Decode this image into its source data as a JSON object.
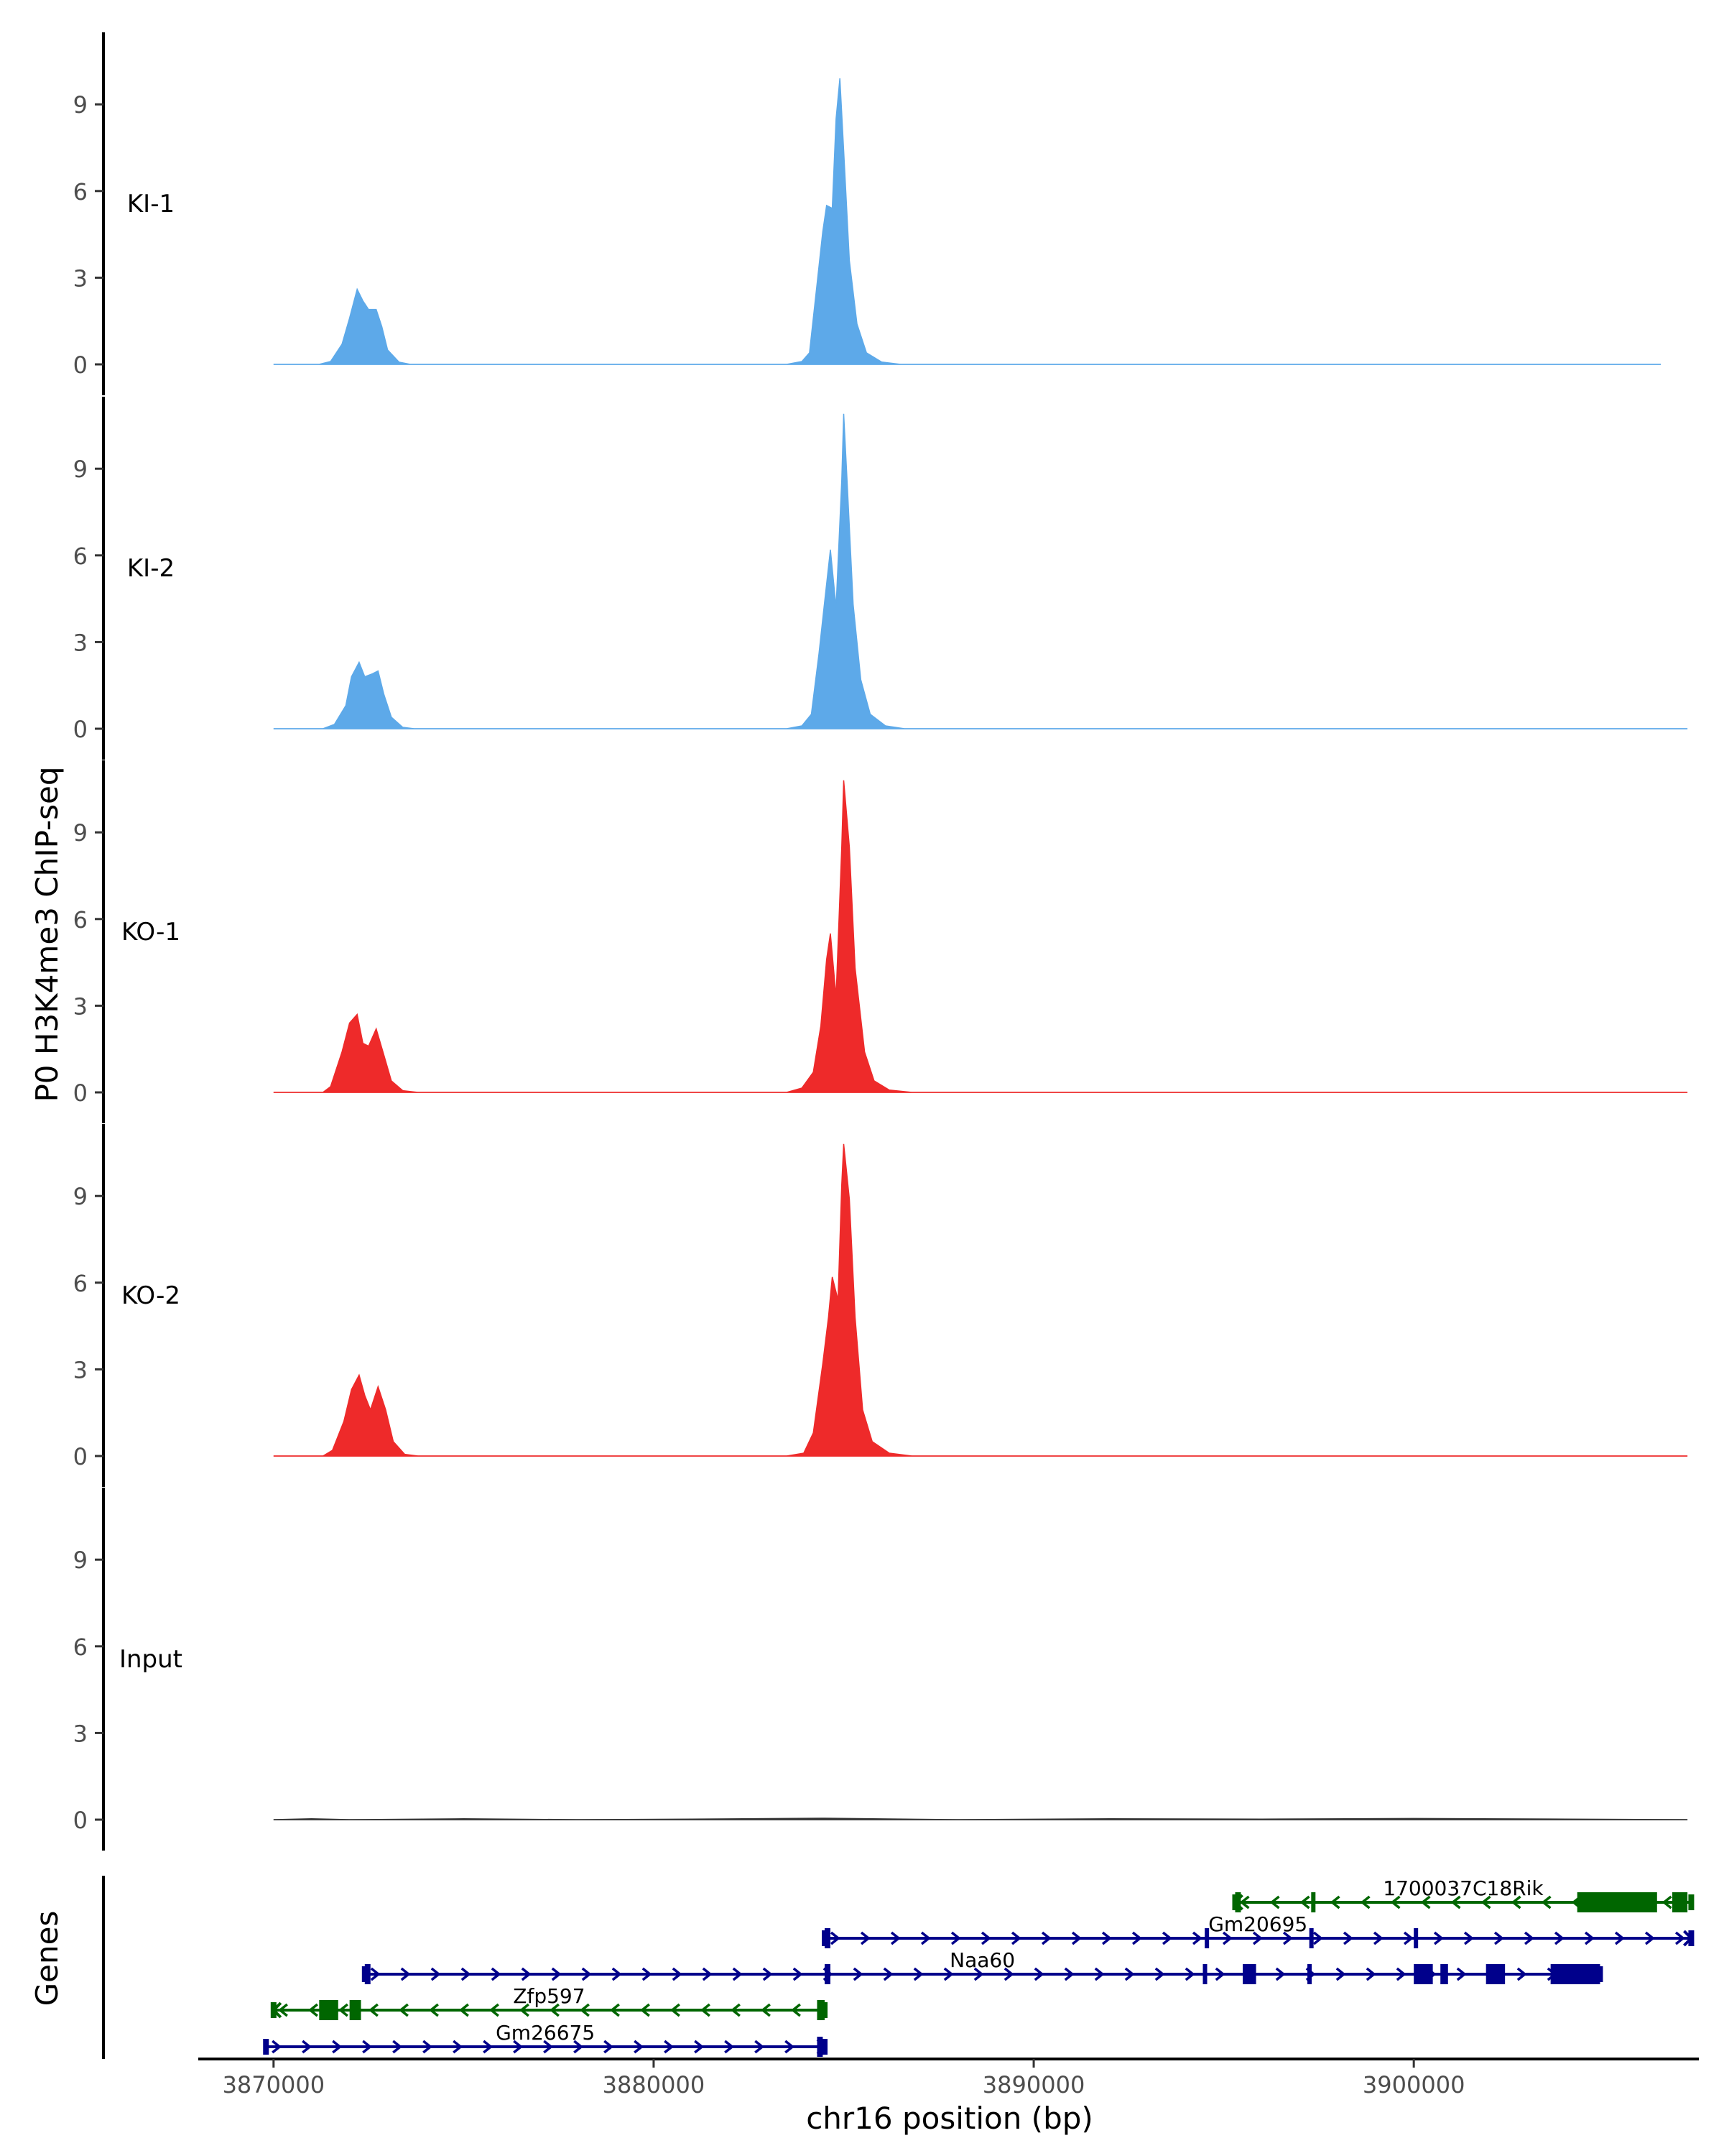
{
  "chart_data": {
    "type": "area",
    "title": "",
    "ylabel": "P0 H3K4me3 ChIP-seq",
    "xlabel": "chr16 position (bp)",
    "xlim": [
      3868000,
      3907500
    ],
    "ylim": [
      -0.3,
      11.5
    ],
    "x_ticks": [
      3870000,
      3880000,
      3890000,
      3900000
    ],
    "x_tick_labels": [
      "3870000",
      "3880000",
      "3890000",
      "3900000"
    ],
    "y_ticks": [
      0,
      3,
      6,
      9
    ],
    "y_tick_labels": [
      "0",
      "3",
      "6",
      "9"
    ],
    "tracks": [
      {
        "name": "KI-1",
        "color": "#5DA9E9",
        "points": [
          [
            3870000,
            0
          ],
          [
            3871200,
            0
          ],
          [
            3871500,
            0.1
          ],
          [
            3871800,
            0.7
          ],
          [
            3872000,
            1.6
          ],
          [
            3872200,
            2.6
          ],
          [
            3872350,
            2.2
          ],
          [
            3872500,
            1.9
          ],
          [
            3872700,
            1.9
          ],
          [
            3872850,
            1.3
          ],
          [
            3873000,
            0.5
          ],
          [
            3873300,
            0.08
          ],
          [
            3873600,
            0
          ],
          [
            3883500,
            0
          ],
          [
            3883900,
            0.1
          ],
          [
            3884100,
            0.4
          ],
          [
            3884300,
            2.8
          ],
          [
            3884450,
            4.6
          ],
          [
            3884550,
            5.5
          ],
          [
            3884700,
            5.4
          ],
          [
            3884800,
            8.5
          ],
          [
            3884900,
            9.9
          ],
          [
            3885000,
            7.4
          ],
          [
            3885150,
            3.6
          ],
          [
            3885350,
            1.4
          ],
          [
            3885600,
            0.4
          ],
          [
            3886000,
            0.08
          ],
          [
            3886500,
            0
          ],
          [
            3906500,
            0
          ]
        ]
      },
      {
        "name": "KI-2",
        "color": "#5DA9E9",
        "points": [
          [
            3870000,
            0
          ],
          [
            3871300,
            0
          ],
          [
            3871600,
            0.15
          ],
          [
            3871900,
            0.8
          ],
          [
            3872050,
            1.8
          ],
          [
            3872250,
            2.3
          ],
          [
            3872400,
            1.8
          ],
          [
            3872600,
            1.9
          ],
          [
            3872750,
            2.0
          ],
          [
            3872900,
            1.2
          ],
          [
            3873100,
            0.4
          ],
          [
            3873400,
            0.05
          ],
          [
            3873700,
            0
          ],
          [
            3883500,
            0
          ],
          [
            3883900,
            0.1
          ],
          [
            3884150,
            0.5
          ],
          [
            3884350,
            2.6
          ],
          [
            3884500,
            4.4
          ],
          [
            3884650,
            6.2
          ],
          [
            3884800,
            4.2
          ],
          [
            3884950,
            8.6
          ],
          [
            3885000,
            10.9
          ],
          [
            3885100,
            8.3
          ],
          [
            3885250,
            4.3
          ],
          [
            3885450,
            1.7
          ],
          [
            3885700,
            0.5
          ],
          [
            3886100,
            0.1
          ],
          [
            3886600,
            0
          ],
          [
            3907200,
            0
          ]
        ]
      },
      {
        "name": "KO-1",
        "color": "#EE2A2A",
        "points": [
          [
            3870000,
            0
          ],
          [
            3871300,
            0
          ],
          [
            3871500,
            0.2
          ],
          [
            3871800,
            1.4
          ],
          [
            3872000,
            2.4
          ],
          [
            3872200,
            2.7
          ],
          [
            3872350,
            1.7
          ],
          [
            3872500,
            1.6
          ],
          [
            3872700,
            2.2
          ],
          [
            3872900,
            1.3
          ],
          [
            3873100,
            0.4
          ],
          [
            3873400,
            0.06
          ],
          [
            3873800,
            0
          ],
          [
            3883500,
            0
          ],
          [
            3883900,
            0.15
          ],
          [
            3884200,
            0.7
          ],
          [
            3884400,
            2.3
          ],
          [
            3884550,
            4.6
          ],
          [
            3884650,
            5.5
          ],
          [
            3884800,
            3.3
          ],
          [
            3884950,
            8.5
          ],
          [
            3885000,
            10.8
          ],
          [
            3885150,
            8.5
          ],
          [
            3885300,
            4.3
          ],
          [
            3885550,
            1.4
          ],
          [
            3885800,
            0.4
          ],
          [
            3886200,
            0.08
          ],
          [
            3886800,
            0
          ],
          [
            3907200,
            0
          ]
        ]
      },
      {
        "name": "KO-2",
        "color": "#EE2A2A",
        "points": [
          [
            3870000,
            0
          ],
          [
            3871300,
            0
          ],
          [
            3871550,
            0.2
          ],
          [
            3871850,
            1.2
          ],
          [
            3872050,
            2.3
          ],
          [
            3872250,
            2.8
          ],
          [
            3872400,
            2.1
          ],
          [
            3872550,
            1.6
          ],
          [
            3872750,
            2.4
          ],
          [
            3872950,
            1.6
          ],
          [
            3873150,
            0.5
          ],
          [
            3873450,
            0.06
          ],
          [
            3873800,
            0
          ],
          [
            3883500,
            0
          ],
          [
            3883950,
            0.1
          ],
          [
            3884200,
            0.8
          ],
          [
            3884450,
            3.2
          ],
          [
            3884600,
            4.8
          ],
          [
            3884700,
            6.2
          ],
          [
            3884850,
            5.4
          ],
          [
            3884950,
            9.4
          ],
          [
            3885000,
            10.8
          ],
          [
            3885150,
            8.9
          ],
          [
            3885300,
            4.8
          ],
          [
            3885500,
            1.6
          ],
          [
            3885750,
            0.5
          ],
          [
            3886200,
            0.1
          ],
          [
            3886800,
            0
          ],
          [
            3907200,
            0
          ]
        ]
      },
      {
        "name": "Input",
        "color": "#333333",
        "points": [
          [
            3870000,
            0
          ],
          [
            3871000,
            0.03
          ],
          [
            3872000,
            0
          ],
          [
            3875000,
            0.03
          ],
          [
            3878000,
            0
          ],
          [
            3881000,
            0.02
          ],
          [
            3884500,
            0.05
          ],
          [
            3888000,
            0
          ],
          [
            3892000,
            0.03
          ],
          [
            3896000,
            0.02
          ],
          [
            3900000,
            0.04
          ],
          [
            3904000,
            0.02
          ],
          [
            3907200,
            0
          ]
        ]
      }
    ],
    "genes_track_label": "Genes",
    "genes": [
      {
        "name": "1700037C18Rik",
        "strand": "-",
        "color": "#006600",
        "start": 3895300,
        "end": 3907300,
        "exons": [
          [
            3895300,
            3895450
          ],
          [
            3897300,
            3897400
          ],
          [
            3904300,
            3906400
          ],
          [
            3906800,
            3907200
          ]
        ]
      },
      {
        "name": "Gm20695",
        "strand": "+",
        "color": "#00008B",
        "start": 3884500,
        "end": 3907300,
        "exons": [
          [
            3884500,
            3884650
          ],
          [
            3894500,
            3894600
          ],
          [
            3897250,
            3897350
          ],
          [
            3900000,
            3900100
          ]
        ]
      },
      {
        "name": "Naa60",
        "strand": "+",
        "color": "#00008B",
        "start": 3872400,
        "end": 3904900,
        "exons": [
          [
            3872400,
            3872550
          ],
          [
            3884500,
            3884650
          ],
          [
            3894450,
            3894550
          ],
          [
            3895500,
            3895850
          ],
          [
            3897200,
            3897300
          ],
          [
            3900000,
            3900500
          ],
          [
            3900700,
            3900900
          ],
          [
            3901900,
            3902400
          ],
          [
            3903600,
            3904900
          ]
        ]
      },
      {
        "name": "Zfp597",
        "strand": "-",
        "color": "#006600",
        "start": 3870000,
        "end": 3884500,
        "exons": [
          [
            3871200,
            3871700
          ],
          [
            3872000,
            3872300
          ],
          [
            3884300,
            3884500
          ]
        ]
      },
      {
        "name": "Gm26675",
        "strand": "+",
        "color": "#00008B",
        "start": 3869800,
        "end": 3884500,
        "exons": [
          [
            3884300,
            3884450
          ]
        ]
      }
    ]
  }
}
